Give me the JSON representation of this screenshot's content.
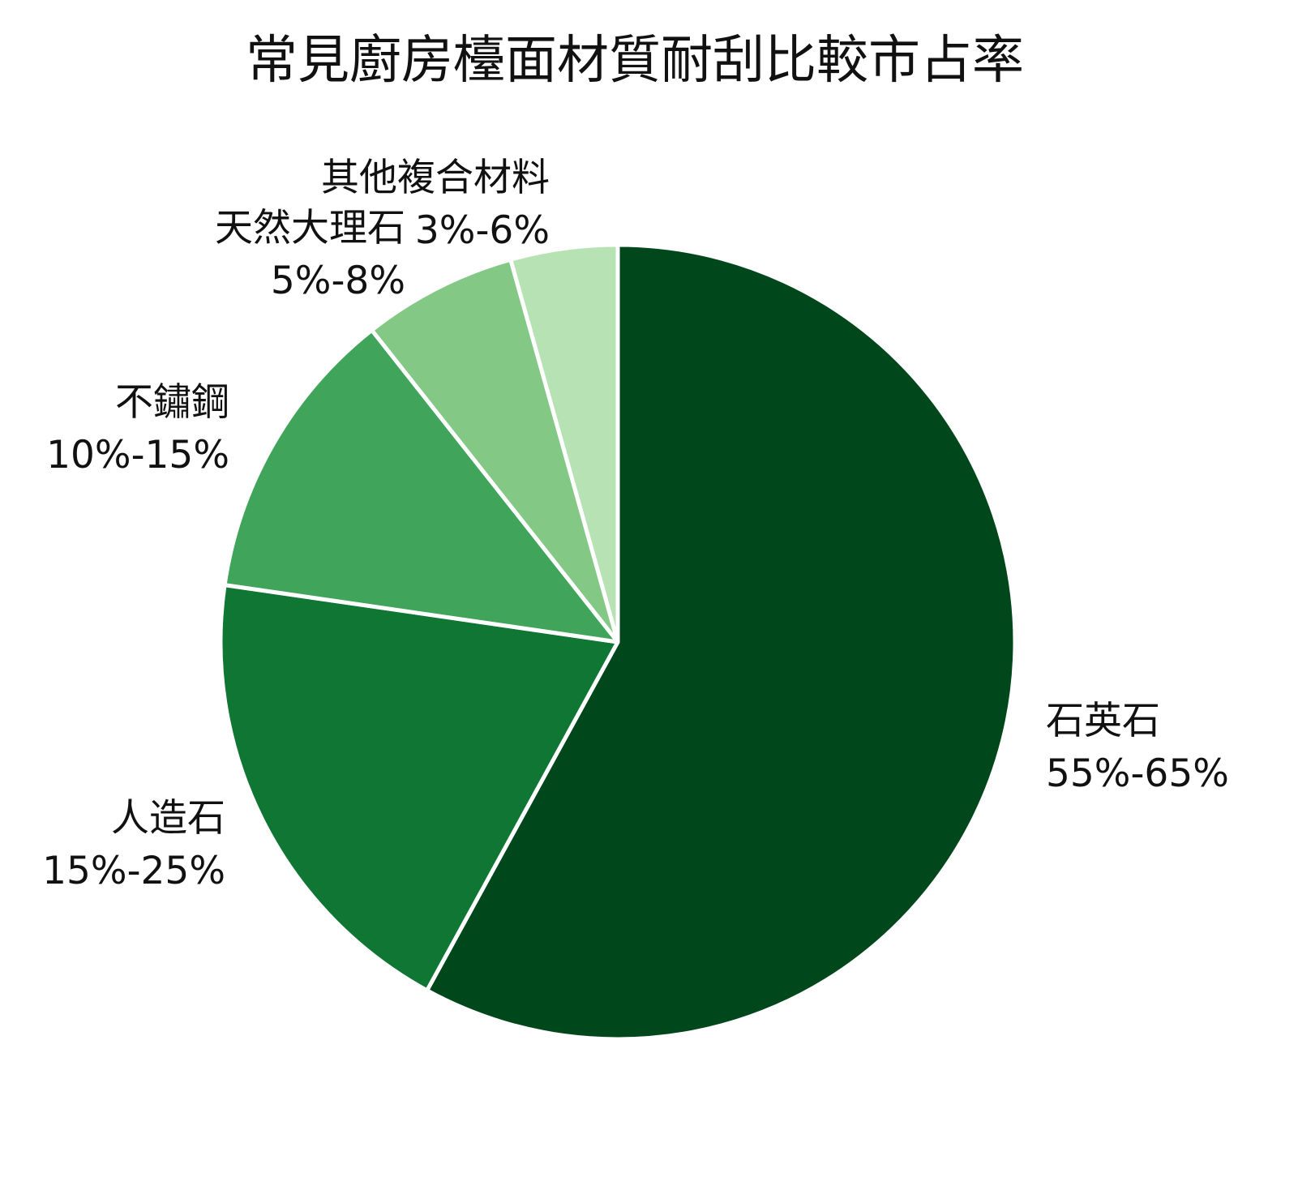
{
  "chart_data": {
    "type": "pie",
    "title": "常見廚房檯面材質耐刮比較市占率",
    "colors": [
      "#00471b",
      "#0f7634",
      "#40a45a",
      "#83c884",
      "#b7e2b4"
    ],
    "slices": [
      {
        "name": "石英石",
        "range": "55%-65%",
        "value": 60
      },
      {
        "name": "人造石",
        "range": "15%-25%",
        "value": 20
      },
      {
        "name": "不鏽鋼",
        "range": "10%-15%",
        "value": 12.5
      },
      {
        "name": "天然大理石",
        "range": "5%-8%",
        "value": 6.5
      },
      {
        "name": "其他複合材料",
        "range": "3%-6%",
        "value": 4.5
      }
    ]
  }
}
